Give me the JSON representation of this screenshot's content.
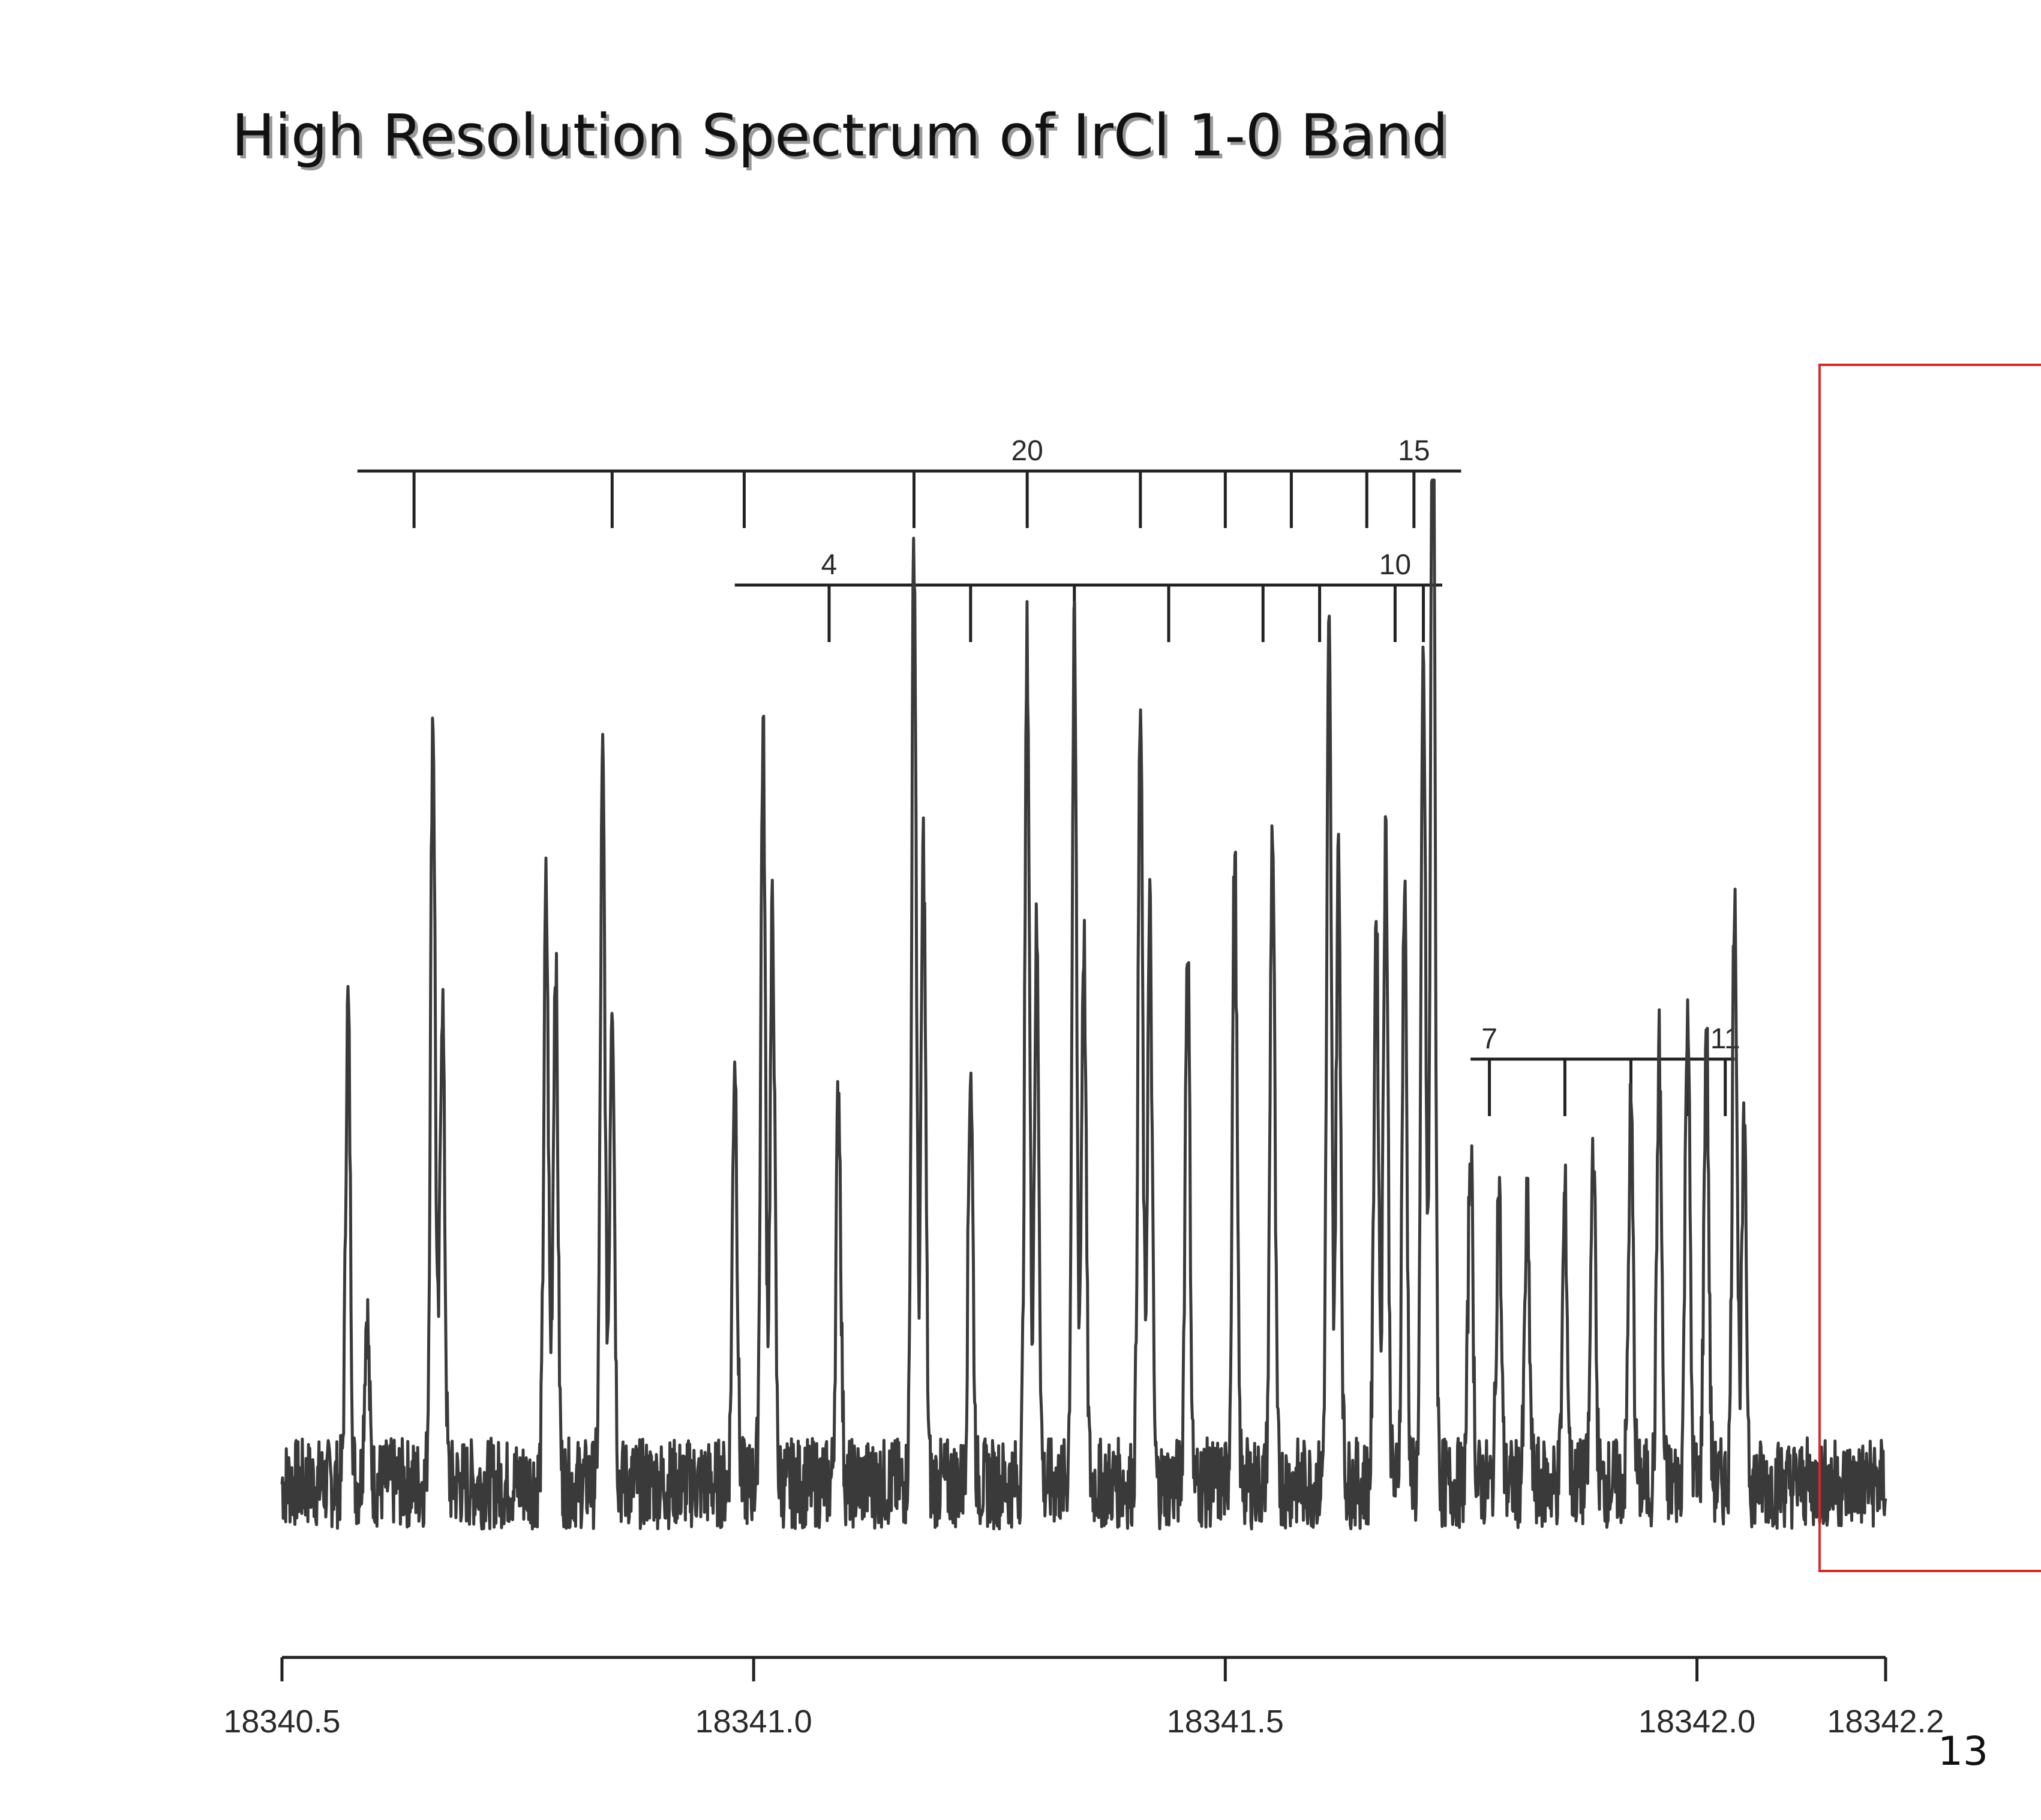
{
  "chart_data": {
    "type": "line",
    "title": "High Resolution Spectrum of IrCl 1-0 Band",
    "xlabel": "",
    "ylabel": "",
    "xlim": [
      18340.5,
      18342.2
    ],
    "ylim": [
      0,
      1
    ],
    "x_ticks": [
      18340.5,
      18341.0,
      18341.5,
      18342.0,
      18342.2
    ],
    "x_tick_labels": [
      "18340.5",
      "18341.0",
      "18341.5",
      "18342.0",
      "18342.2"
    ],
    "grid": false,
    "legend": "none",
    "line_color": "#3a3a3a",
    "baseline": 0.12,
    "noise": 0.04,
    "peaks": [
      {
        "x": 18340.57,
        "h": 0.42
      },
      {
        "x": 18340.59,
        "h": 0.15
      },
      {
        "x": 18340.66,
        "h": 0.68
      },
      {
        "x": 18340.67,
        "h": 0.43
      },
      {
        "x": 18340.78,
        "h": 0.52
      },
      {
        "x": 18340.79,
        "h": 0.46
      },
      {
        "x": 18340.84,
        "h": 0.63
      },
      {
        "x": 18340.85,
        "h": 0.44
      },
      {
        "x": 18340.98,
        "h": 0.38
      },
      {
        "x": 18341.01,
        "h": 0.66
      },
      {
        "x": 18341.02,
        "h": 0.5
      },
      {
        "x": 18341.09,
        "h": 0.35
      },
      {
        "x": 18341.17,
        "h": 0.83
      },
      {
        "x": 18341.18,
        "h": 0.56
      },
      {
        "x": 18341.23,
        "h": 0.37
      },
      {
        "x": 18341.29,
        "h": 0.74
      },
      {
        "x": 18341.3,
        "h": 0.48
      },
      {
        "x": 18341.34,
        "h": 0.74
      },
      {
        "x": 18341.35,
        "h": 0.48
      },
      {
        "x": 18341.41,
        "h": 0.68
      },
      {
        "x": 18341.42,
        "h": 0.5
      },
      {
        "x": 18341.46,
        "h": 0.48
      },
      {
        "x": 18341.51,
        "h": 0.55
      },
      {
        "x": 18341.55,
        "h": 0.58
      },
      {
        "x": 18341.61,
        "h": 0.74
      },
      {
        "x": 18341.62,
        "h": 0.55
      },
      {
        "x": 18341.66,
        "h": 0.5
      },
      {
        "x": 18341.67,
        "h": 0.58
      },
      {
        "x": 18341.69,
        "h": 0.52
      },
      {
        "x": 18341.71,
        "h": 0.72
      },
      {
        "x": 18341.72,
        "h": 1.0
      },
      {
        "x": 18341.76,
        "h": 0.3
      },
      {
        "x": 18341.79,
        "h": 0.26
      },
      {
        "x": 18341.82,
        "h": 0.24
      },
      {
        "x": 18341.86,
        "h": 0.25
      },
      {
        "x": 18341.89,
        "h": 0.3
      },
      {
        "x": 18341.93,
        "h": 0.33
      },
      {
        "x": 18341.96,
        "h": 0.38
      },
      {
        "x": 18341.99,
        "h": 0.43
      },
      {
        "x": 18342.01,
        "h": 0.4
      },
      {
        "x": 18342.04,
        "h": 0.53
      },
      {
        "x": 18342.05,
        "h": 0.3
      }
    ],
    "annotations": [
      {
        "series": "upper",
        "from": 18340.58,
        "to": 18341.75,
        "ticks": [
          18340.64,
          18340.85,
          18340.99,
          18341.17,
          18341.29,
          18341.41,
          18341.5,
          18341.57,
          18341.65,
          18341.7
        ],
        "labels": [
          {
            "x": 18341.29,
            "text": "20"
          },
          {
            "x": 18341.7,
            "text": "15"
          }
        ]
      },
      {
        "series": "middle",
        "from": 18340.98,
        "to": 18341.73,
        "ticks": [
          18341.08,
          18341.23,
          18341.34,
          18341.44,
          18341.54,
          18341.6,
          18341.68,
          18341.71
        ],
        "labels": [
          {
            "x": 18341.08,
            "text": "4"
          },
          {
            "x": 18341.68,
            "text": "10"
          }
        ]
      },
      {
        "series": "lower",
        "from": 18341.76,
        "to": 18342.04,
        "ticks": [
          18341.78,
          18341.86,
          18341.93,
          18341.99,
          18342.03
        ],
        "labels": [
          {
            "x": 18341.78,
            "text": "7"
          },
          {
            "x": 18342.03,
            "text": "11"
          }
        ]
      }
    ],
    "highlight_box": {
      "x_from": 18342.13,
      "x_to": 18342.41,
      "color": "#d42a2a"
    }
  },
  "slide": {
    "number": "13"
  }
}
